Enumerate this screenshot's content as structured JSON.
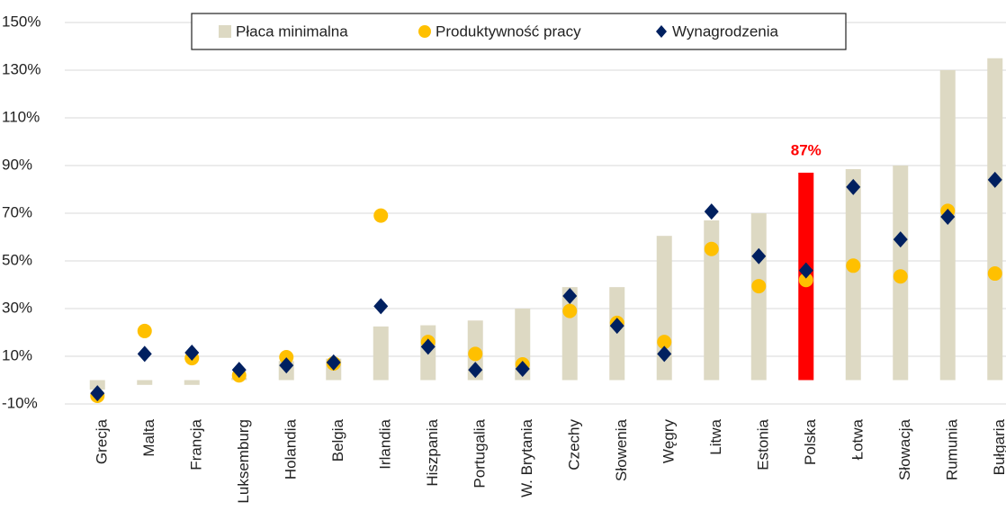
{
  "chart_data": {
    "type": "bar_markers",
    "categories": [
      "Grecja",
      "Malta",
      "Francja",
      "Luksemburg",
      "Holandia",
      "Belgia",
      "Irlandia",
      "Hiszpania",
      "Portugalia",
      "W. Brytania",
      "Czechy",
      "Słowenia",
      "Węgry",
      "Litwa",
      "Estonia",
      "Polska",
      "Łotwa",
      "Słowacja",
      "Rumunia",
      "Bułgaria"
    ],
    "series": [
      {
        "name": "Płaca minimalna",
        "kind": "bar",
        "color": "#ddd9c3",
        "highlight_index": 15,
        "highlight_color": "#ff0000",
        "values": [
          -4,
          -2,
          -2,
          1,
          8,
          9,
          22.5,
          23,
          25,
          30,
          39,
          39,
          60.5,
          67,
          70,
          87,
          88.5,
          90,
          130,
          135
        ],
        "value_labels": [
          null,
          null,
          null,
          null,
          null,
          null,
          null,
          null,
          null,
          null,
          null,
          null,
          null,
          null,
          null,
          "87%",
          null,
          null,
          null,
          null
        ]
      },
      {
        "name": "Produktywność pracy",
        "kind": "circle",
        "color": "#ffc000",
        "values": [
          -6.6,
          20.6,
          9.2,
          2,
          9.6,
          7,
          69,
          16,
          11,
          6.6,
          29,
          24,
          16,
          55,
          39.4,
          42,
          48,
          43.5,
          71,
          44.7
        ]
      },
      {
        "name": "Wynagrodzenia",
        "kind": "diamond",
        "color": "#002060",
        "values": [
          -5.5,
          11,
          11.5,
          4.3,
          6.2,
          7.4,
          31,
          14,
          4.3,
          4.7,
          35.3,
          22.8,
          11,
          70.7,
          52,
          46,
          81,
          59,
          68.5,
          84
        ]
      }
    ],
    "ylim": [
      -10,
      150
    ],
    "yticks": [
      {
        "value": -10,
        "label": "-10%"
      },
      {
        "value": 10,
        "label": "10%"
      },
      {
        "value": 30,
        "label": "30%"
      },
      {
        "value": 50,
        "label": "50%"
      },
      {
        "value": 70,
        "label": "70%"
      },
      {
        "value": 90,
        "label": "90%"
      },
      {
        "value": 110,
        "label": "110%"
      },
      {
        "value": 130,
        "label": "130%"
      },
      {
        "value": 150,
        "label": "150%"
      }
    ],
    "grid": true,
    "legend": "top"
  }
}
